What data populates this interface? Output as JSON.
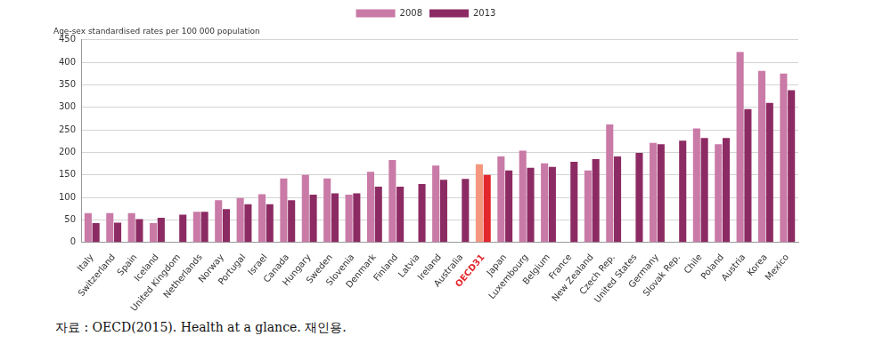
{
  "chart_data": {
    "type": "bar",
    "y_label": "Age-sex standardised rates per 100 000 population",
    "source": "자료 : OECD(2015). Health at a glance. 재인용.",
    "categories": [
      "Italy",
      "Switzerland",
      "Spain",
      "Iceland",
      "United Kingdom",
      "Netherlands",
      "Norway",
      "Portugal",
      "Israel",
      "Canada",
      "Hungary",
      "Sweden",
      "Slovenia",
      "Denmark",
      "Finland",
      "Latvia",
      "Ireland",
      "Australia",
      "OECD31",
      "Japan",
      "Luxembourg",
      "Belgium",
      "France",
      "New Zealand",
      "Czech Rep.",
      "United States",
      "Germany",
      "Slovak Rep.",
      "Chile",
      "Poland",
      "Austria",
      "Korea",
      "Mexico"
    ],
    "series": [
      {
        "name": "2008",
        "color": "#c97aa7",
        "colors": [
          "#c97aa7",
          "#c97aa7",
          "#c97aa7",
          "#c97aa7",
          "#c97aa7",
          "#c97aa7",
          "#c97aa7",
          "#c97aa7",
          "#c97aa7",
          "#c97aa7",
          "#c97aa7",
          "#c97aa7",
          "#c97aa7",
          "#c97aa7",
          "#c97aa7",
          "#c97aa7",
          "#c97aa7",
          "#c97aa7",
          "#f4977f",
          "#c97aa7",
          "#c97aa7",
          "#c97aa7",
          "#c97aa7",
          "#c97aa7",
          "#c97aa7",
          "#c97aa7",
          "#c97aa7",
          "#c97aa7",
          "#c97aa7",
          "#c97aa7",
          "#c97aa7",
          "#c97aa7",
          "#c97aa7"
        ],
        "values": [
          65,
          65,
          65,
          43,
          null,
          68,
          94,
          99,
          107,
          142,
          150,
          142,
          106,
          157,
          183,
          null,
          171,
          null,
          174,
          191,
          204,
          176,
          null,
          160,
          262,
          null,
          221,
          null,
          253,
          218,
          423,
          381,
          375
        ]
      },
      {
        "name": "2013",
        "color": "#8c2b63",
        "colors": [
          "#8c2b63",
          "#8c2b63",
          "#8c2b63",
          "#8c2b63",
          "#8c2b63",
          "#8c2b63",
          "#8c2b63",
          "#8c2b63",
          "#8c2b63",
          "#8c2b63",
          "#8c2b63",
          "#8c2b63",
          "#8c2b63",
          "#8c2b63",
          "#8c2b63",
          "#8c2b63",
          "#8c2b63",
          "#8c2b63",
          "#e3262b",
          "#8c2b63",
          "#8c2b63",
          "#8c2b63",
          "#8c2b63",
          "#8c2b63",
          "#8c2b63",
          "#8c2b63",
          "#8c2b63",
          "#8c2b63",
          "#8c2b63",
          "#8c2b63",
          "#8c2b63",
          "#8c2b63",
          "#8c2b63"
        ],
        "values": [
          43,
          44,
          52,
          55,
          62,
          68,
          74,
          85,
          85,
          94,
          106,
          109,
          109,
          124,
          124,
          130,
          139,
          141,
          150,
          160,
          166,
          168,
          179,
          185,
          191,
          199,
          218,
          226,
          232,
          232,
          296,
          310,
          338
        ]
      }
    ],
    "ylim": [
      0,
      450
    ],
    "yticks": [
      0,
      50,
      100,
      150,
      200,
      250,
      300,
      350,
      400,
      450
    ],
    "grid": true,
    "legend": "top"
  }
}
